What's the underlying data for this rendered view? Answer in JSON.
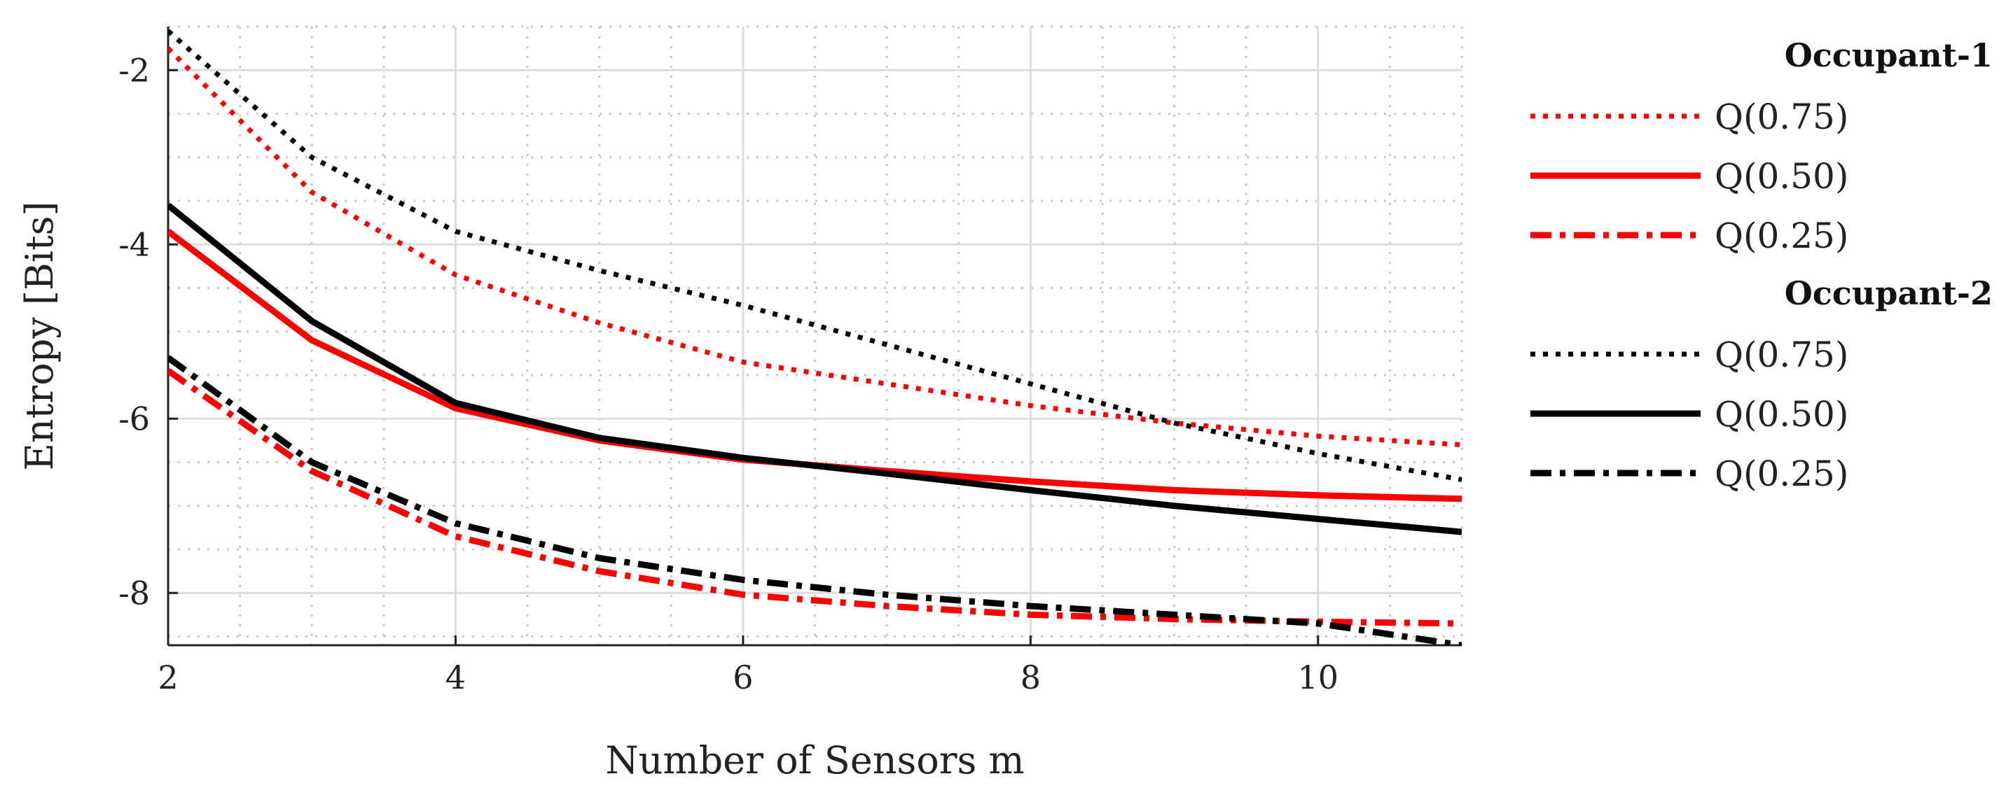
{
  "chart_data": {
    "type": "line",
    "title": "",
    "xlabel": "Number of Sensors m",
    "ylabel": "Entropy [Bits]",
    "xlim": [
      2,
      11
    ],
    "ylim": [
      -8.6,
      -1.5
    ],
    "xticks": [
      2,
      4,
      6,
      8,
      10
    ],
    "xtick_labels": [
      "2",
      "4",
      "6",
      "8",
      "10"
    ],
    "yticks": [
      -2,
      -4,
      -6,
      -8
    ],
    "ytick_labels": [
      "-2",
      "-4",
      "-6",
      "-8"
    ],
    "grid": true,
    "minor_grid": true,
    "legend_position": "right",
    "x": [
      2,
      3,
      4,
      5,
      6,
      7,
      8,
      9,
      10,
      11
    ],
    "groups": [
      {
        "name": "Occupant-1",
        "color": "#ff0000",
        "series": [
          {
            "name": "Q(0.75)",
            "style": "dotted",
            "values": [
              -1.75,
              -3.4,
              -4.35,
              -4.9,
              -5.35,
              -5.6,
              -5.85,
              -6.05,
              -6.2,
              -6.3
            ]
          },
          {
            "name": "Q(0.50)",
            "style": "solid",
            "values": [
              -3.85,
              -5.1,
              -5.88,
              -6.25,
              -6.47,
              -6.6,
              -6.72,
              -6.82,
              -6.88,
              -6.92
            ]
          },
          {
            "name": "Q(0.25)",
            "style": "dashdot",
            "values": [
              -5.45,
              -6.6,
              -7.35,
              -7.75,
              -8.02,
              -8.15,
              -8.25,
              -8.3,
              -8.33,
              -8.35
            ]
          }
        ]
      },
      {
        "name": "Occupant-2",
        "color": "#000000",
        "series": [
          {
            "name": "Q(0.75)",
            "style": "dotted",
            "values": [
              -1.55,
              -3.0,
              -3.85,
              -4.3,
              -4.7,
              -5.15,
              -5.6,
              -6.05,
              -6.4,
              -6.7
            ]
          },
          {
            "name": "Q(0.50)",
            "style": "solid",
            "values": [
              -3.55,
              -4.88,
              -5.82,
              -6.22,
              -6.45,
              -6.63,
              -6.82,
              -7.0,
              -7.15,
              -7.3
            ]
          },
          {
            "name": "Q(0.25)",
            "style": "dashdot",
            "values": [
              -5.3,
              -6.5,
              -7.2,
              -7.6,
              -7.85,
              -8.02,
              -8.15,
              -8.25,
              -8.35,
              -8.6
            ]
          }
        ]
      }
    ]
  }
}
